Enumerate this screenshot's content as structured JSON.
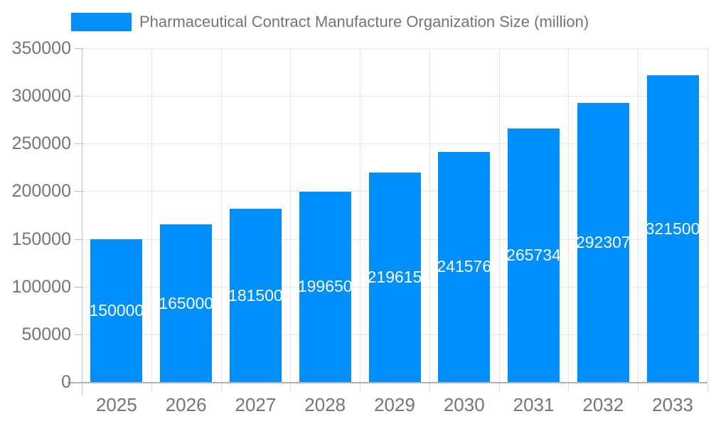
{
  "chart_data": {
    "type": "bar",
    "title": "Pharmaceutical Contract Manufacture Organization Size (million)",
    "categories": [
      "2025",
      "2026",
      "2027",
      "2028",
      "2029",
      "2030",
      "2031",
      "2032",
      "2033"
    ],
    "values": [
      150000,
      165000,
      181500,
      199650,
      219615,
      241576,
      265734,
      292307,
      321500
    ],
    "xlabel": "",
    "ylabel": "",
    "ylim": [
      0,
      350000
    ],
    "yticks": [
      0,
      50000,
      100000,
      150000,
      200000,
      250000,
      300000,
      350000
    ],
    "grid": true,
    "legend_position": "top-left",
    "bar_color": "#008FFB",
    "bar_label_color": "#ffffff",
    "axis_label_color": "#757575",
    "grid_color": "#e6e6e6"
  }
}
